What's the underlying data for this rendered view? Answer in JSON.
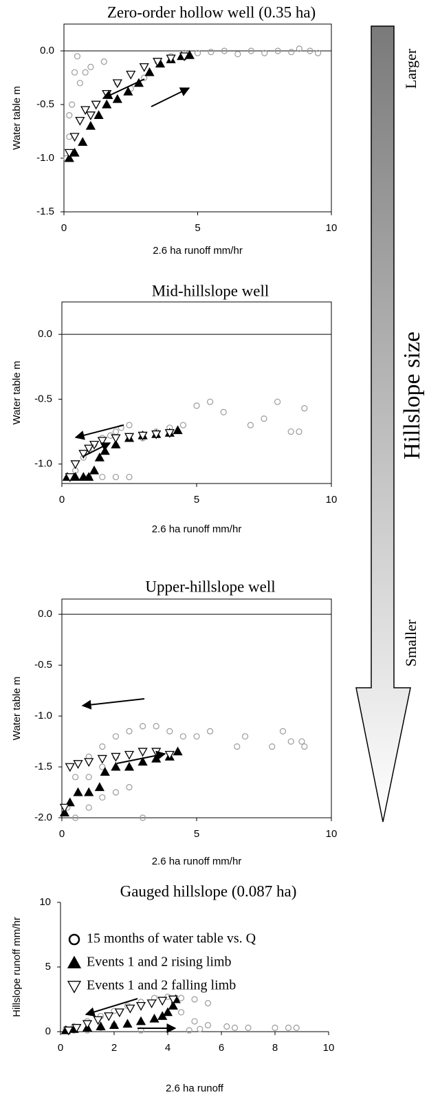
{
  "chart_data": [
    {
      "type": "scatter",
      "title": "Zero-order hollow well (0.35 ha)",
      "x_label": "2.6 ha runoff mm/hr",
      "y_label": "Water table m",
      "xlim": [
        0,
        10
      ],
      "xticks": [
        0,
        5,
        10
      ],
      "ylim": [
        -1.5,
        0.25
      ],
      "yticks": [
        {
          "value": 0,
          "label": "0.0"
        },
        -0.5,
        {
          "value": -1,
          "label": "-1.0"
        },
        -1.5
      ],
      "box": true,
      "series": [
        {
          "marker": "circle",
          "color": "#9a9a9a",
          "x": [
            0.1,
            0.2,
            0.3,
            0.4,
            0.5,
            0.3,
            0.2,
            0.6,
            0.8,
            1.0,
            1.5,
            2.0,
            2.5,
            3.0,
            3.5,
            4.0,
            4.5,
            5.0,
            5.5,
            6.0,
            6.5,
            7.0,
            7.5,
            8.0,
            8.5,
            8.8,
            9.2,
            9.5
          ],
          "values": [
            -1.0,
            -0.8,
            -0.5,
            -0.2,
            -0.05,
            -0.95,
            -0.6,
            -0.3,
            -0.2,
            -0.15,
            -0.1,
            -0.3,
            -0.35,
            -0.25,
            -0.1,
            -0.05,
            -0.02,
            -0.02,
            -0.01,
            0.0,
            -0.03,
            0.0,
            -0.02,
            0.0,
            -0.01,
            0.02,
            0.0,
            -0.02
          ]
        },
        {
          "marker": "triangle-up",
          "color": "#000000",
          "x": [
            0.2,
            0.4,
            0.7,
            1.0,
            1.3,
            1.6,
            2.0,
            2.4,
            2.8,
            3.2,
            3.6,
            4.0,
            4.4,
            4.7
          ],
          "values": [
            -1.0,
            -0.95,
            -0.85,
            -0.7,
            -0.6,
            -0.5,
            -0.45,
            -0.38,
            -0.3,
            -0.2,
            -0.12,
            -0.08,
            -0.05,
            -0.04
          ]
        },
        {
          "marker": "triangle-down",
          "color": "#ffffff",
          "x": [
            4.5,
            4.0,
            3.5,
            3.0,
            2.5,
            2.0,
            1.6,
            1.2,
            1.0,
            0.8,
            0.6,
            0.4,
            0.2
          ],
          "values": [
            -0.05,
            -0.07,
            -0.1,
            -0.15,
            -0.22,
            -0.3,
            -0.4,
            -0.5,
            -0.6,
            -0.55,
            -0.65,
            -0.8,
            -0.95
          ]
        }
      ]
    },
    {
      "type": "scatter",
      "title": "Mid-hillslope well",
      "x_label": "2.6 ha runoff mm/hr",
      "y_label": "Water table m",
      "xlim": [
        0,
        10
      ],
      "xticks": [
        0,
        5,
        10
      ],
      "ylim": [
        -1.15,
        0.25
      ],
      "yticks": [
        {
          "value": 0,
          "label": "0.0"
        },
        -0.5,
        {
          "value": -1,
          "label": "-1.0"
        }
      ],
      "box": true,
      "series": [
        {
          "marker": "circle",
          "color": "#9a9a9a",
          "x": [
            0.3,
            0.5,
            0.8,
            1.0,
            1.2,
            1.5,
            1.8,
            2.0,
            2.2,
            2.5,
            1.0,
            1.5,
            2.0,
            2.5,
            3.0,
            3.5,
            4.0,
            4.5,
            5.0,
            5.5,
            6.0,
            7.0,
            7.5,
            8.0,
            8.5,
            9.0,
            8.8
          ],
          "values": [
            -1.1,
            -1.05,
            -0.95,
            -0.9,
            -0.85,
            -0.8,
            -0.78,
            -0.75,
            -0.72,
            -0.7,
            -1.1,
            -1.1,
            -1.1,
            -1.1,
            -0.8,
            -0.75,
            -0.72,
            -0.7,
            -0.55,
            -0.52,
            -0.6,
            -0.7,
            -0.65,
            -0.52,
            -0.75,
            -0.57,
            -0.75
          ]
        },
        {
          "marker": "triangle-up",
          "color": "#000000",
          "x": [
            0.2,
            0.5,
            0.8,
            1.0,
            1.2,
            1.4,
            1.6,
            2.0,
            2.5,
            3.0,
            3.5,
            4.0,
            4.3
          ],
          "values": [
            -1.1,
            -1.1,
            -1.1,
            -1.1,
            -1.05,
            -0.95,
            -0.9,
            -0.85,
            -0.8,
            -0.78,
            -0.77,
            -0.76,
            -0.74
          ]
        },
        {
          "marker": "triangle-down",
          "color": "#ffffff",
          "x": [
            4.0,
            3.5,
            3.0,
            2.5,
            2.0,
            1.5,
            1.2,
            1.0,
            0.8,
            0.5,
            0.3
          ],
          "values": [
            -0.76,
            -0.77,
            -0.78,
            -0.79,
            -0.8,
            -0.82,
            -0.85,
            -0.88,
            -0.92,
            -1.0,
            -1.1
          ]
        }
      ]
    },
    {
      "type": "scatter",
      "title": "Upper-hillslope well",
      "x_label": "2.6 ha runoff mm/hr",
      "y_label": "Water table m",
      "xlim": [
        0,
        10
      ],
      "xticks": [
        0,
        5,
        10
      ],
      "ylim": [
        -2,
        0.15
      ],
      "yticks": [
        {
          "value": 0,
          "label": "0.0"
        },
        -0.5,
        {
          "value": -1,
          "label": "-1.0"
        },
        -1.5,
        {
          "value": -2,
          "label": "-2.0"
        }
      ],
      "box": true,
      "series": [
        {
          "marker": "circle",
          "color": "#9a9a9a",
          "x": [
            0.2,
            0.5,
            1.0,
            1.5,
            2.0,
            2.5,
            3.0,
            3.5,
            4.0,
            4.5,
            5.0,
            5.5,
            0.5,
            1.0,
            1.5,
            2.0,
            2.5,
            3.0,
            6.5,
            6.8,
            7.8,
            8.2,
            8.5,
            8.9,
            9.0,
            1.0,
            1.5,
            2.0
          ],
          "values": [
            -1.9,
            -1.6,
            -1.4,
            -1.3,
            -1.2,
            -1.15,
            -1.1,
            -1.1,
            -1.15,
            -1.2,
            -1.2,
            -1.15,
            -2.0,
            -1.9,
            -1.8,
            -1.75,
            -1.7,
            -2.0,
            -1.3,
            -1.2,
            -1.3,
            -1.15,
            -1.25,
            -1.25,
            -1.3,
            -1.6,
            -1.5,
            -1.4
          ]
        },
        {
          "marker": "triangle-up",
          "color": "#000000",
          "x": [
            0.1,
            0.3,
            0.6,
            1.0,
            1.4,
            1.6,
            2.0,
            2.5,
            3.0,
            3.5,
            4.0,
            4.3
          ],
          "values": [
            -1.95,
            -1.85,
            -1.75,
            -1.75,
            -1.7,
            -1.55,
            -1.5,
            -1.5,
            -1.45,
            -1.42,
            -1.4,
            -1.35
          ]
        },
        {
          "marker": "triangle-down",
          "color": "#ffffff",
          "x": [
            4.0,
            3.5,
            3.0,
            2.5,
            2.0,
            1.5,
            1.0,
            0.6,
            0.3,
            0.1
          ],
          "values": [
            -1.38,
            -1.35,
            -1.35,
            -1.38,
            -1.4,
            -1.42,
            -1.45,
            -1.47,
            -1.5,
            -1.9
          ]
        }
      ]
    },
    {
      "type": "scatter",
      "title": "Gauged hillslope (0.087 ha)",
      "x_label": "2.6 ha runoff",
      "y_label": "Hillslope runoff mm/hr",
      "xlim": [
        0,
        10
      ],
      "xticks": [
        0,
        2,
        4,
        6,
        8,
        10
      ],
      "ylim": [
        0,
        10
      ],
      "yticks": [
        0,
        5,
        10
      ],
      "box": false,
      "legend": "upper left",
      "series": [
        {
          "name": "15 months of water table vs. Q",
          "marker": "circle",
          "color": "#9a9a9a",
          "x": [
            0.2,
            0.5,
            1.0,
            1.5,
            2.0,
            2.5,
            3.0,
            3.5,
            4.0,
            4.5,
            5.0,
            5.5,
            6.2,
            6.5,
            7.0,
            8.0,
            8.5,
            8.8,
            4.5,
            5.0,
            5.5,
            0.5,
            1.0,
            1.5,
            2.0,
            3.0,
            4.8,
            5.2
          ],
          "values": [
            0.2,
            0.4,
            0.8,
            1.2,
            1.6,
            2.0,
            2.3,
            2.6,
            2.7,
            2.6,
            2.5,
            2.2,
            0.4,
            0.3,
            0.3,
            0.3,
            0.3,
            0.3,
            1.5,
            0.8,
            0.5,
            0.1,
            0.1,
            0.3,
            0.5,
            0.1,
            0.1,
            0.2
          ]
        },
        {
          "name": "Events 1 and 2 rising limb",
          "marker": "triangle-up",
          "color": "#000000",
          "x": [
            0.2,
            0.5,
            1.0,
            1.5,
            2.0,
            2.5,
            3.0,
            3.5,
            3.8,
            4.0,
            4.2,
            4.3
          ],
          "values": [
            0.1,
            0.2,
            0.3,
            0.4,
            0.5,
            0.6,
            0.8,
            1.0,
            1.2,
            1.5,
            2.0,
            2.5
          ]
        },
        {
          "name": "Events 1 and 2 falling limb",
          "marker": "triangle-down",
          "color": "#ffffff",
          "x": [
            4.2,
            3.8,
            3.4,
            3.0,
            2.6,
            2.2,
            1.8,
            1.4,
            1.0,
            0.6,
            0.3
          ],
          "values": [
            2.5,
            2.4,
            2.2,
            2.0,
            1.8,
            1.5,
            1.2,
            0.9,
            0.6,
            0.3,
            0.1
          ]
        }
      ]
    }
  ],
  "scale_arrow": {
    "top_label": "Larger",
    "label": "Hillslope size",
    "bottom_label": "Smaller"
  }
}
